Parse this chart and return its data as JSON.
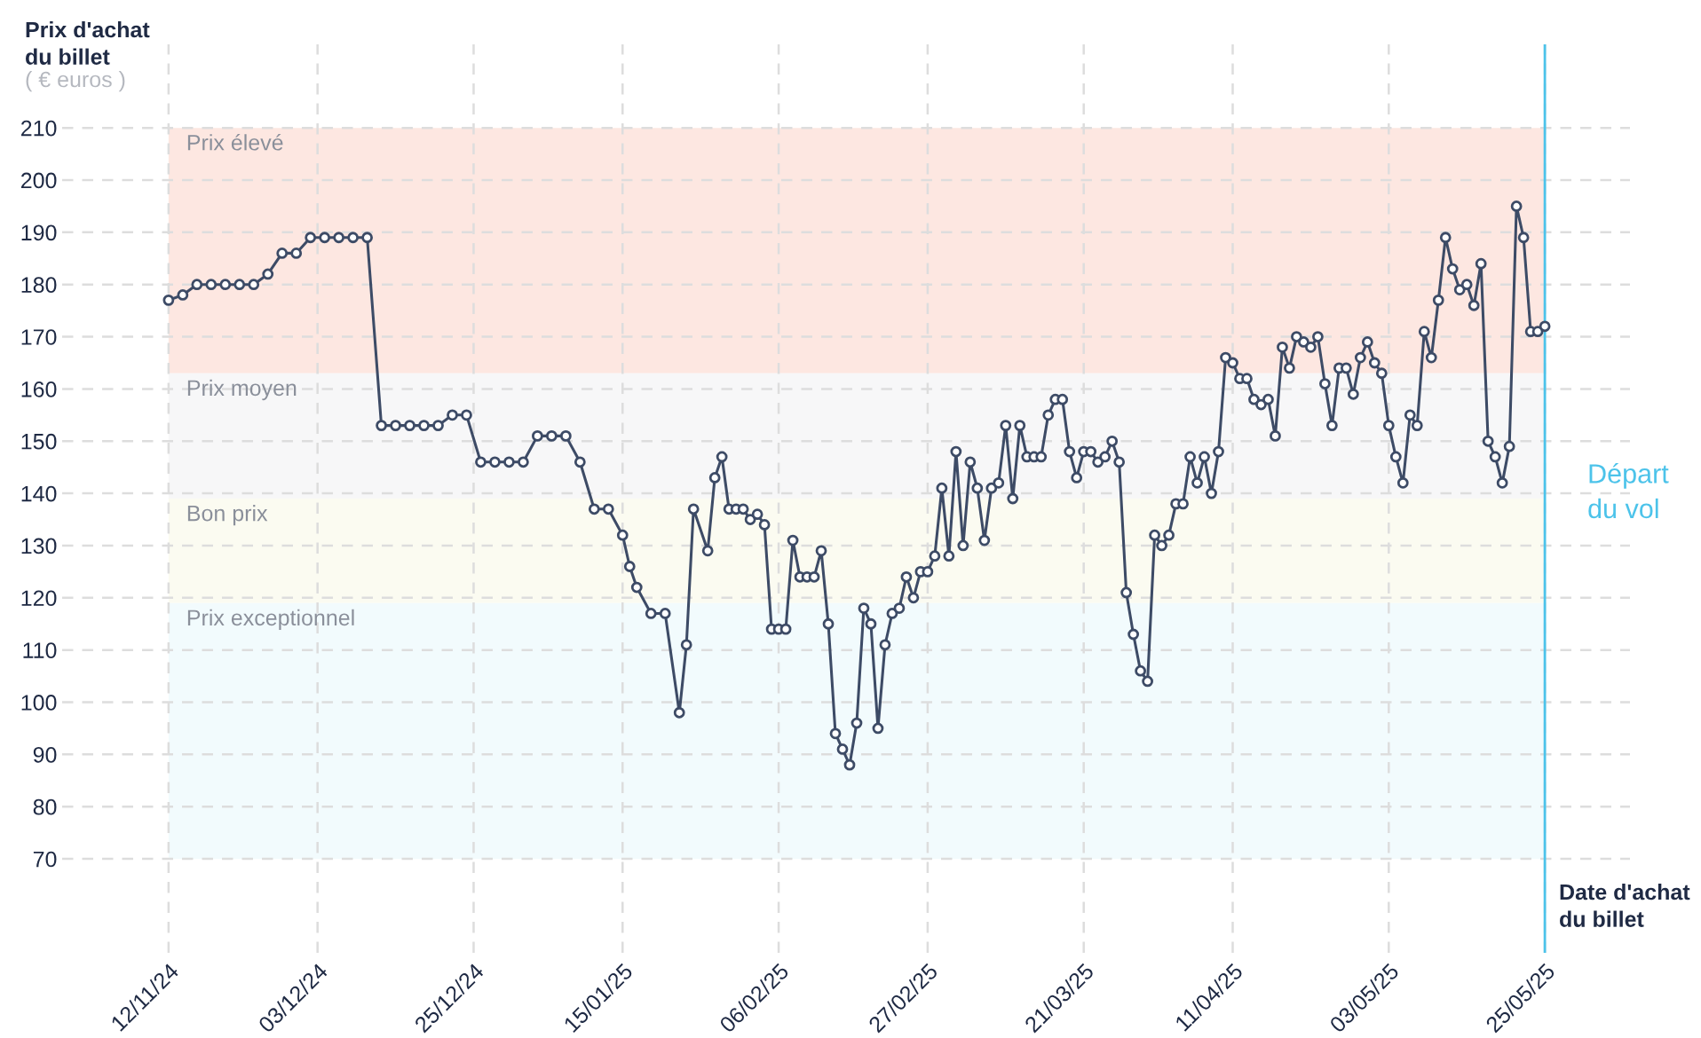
{
  "chart_data": {
    "type": "line",
    "ylabel": "Prix d'achat\ndu billet",
    "subtitle": "( € euros )",
    "xlabel": "Date d'achat\ndu billet",
    "series": [
      {
        "color": "#3d4b66",
        "marker": "circle",
        "line_style": "solid",
        "x": [
          "2024-11-12",
          "2024-11-14",
          "2024-11-16",
          "2024-11-18",
          "2024-11-20",
          "2024-11-22",
          "2024-11-24",
          "2024-11-26",
          "2024-11-28",
          "2024-11-30",
          "2024-12-02",
          "2024-12-04",
          "2024-12-06",
          "2024-12-08",
          "2024-12-10",
          "2024-12-12",
          "2024-12-14",
          "2024-12-16",
          "2024-12-18",
          "2024-12-20",
          "2024-12-22",
          "2024-12-24",
          "2024-12-26",
          "2024-12-28",
          "2024-12-30",
          "2025-01-01",
          "2025-01-03",
          "2025-01-05",
          "2025-01-07",
          "2025-01-09",
          "2025-01-11",
          "2025-01-13",
          "2025-01-15",
          "2025-01-16",
          "2025-01-17",
          "2025-01-19",
          "2025-01-21",
          "2025-01-23",
          "2025-01-24",
          "2025-01-25",
          "2025-01-27",
          "2025-01-28",
          "2025-01-29",
          "2025-01-30",
          "2025-01-31",
          "2025-02-01",
          "2025-02-02",
          "2025-02-03",
          "2025-02-04",
          "2025-02-05",
          "2025-02-06",
          "2025-02-07",
          "2025-02-08",
          "2025-02-09",
          "2025-02-10",
          "2025-02-11",
          "2025-02-12",
          "2025-02-13",
          "2025-02-14",
          "2025-02-15",
          "2025-02-16",
          "2025-02-17",
          "2025-02-18",
          "2025-02-19",
          "2025-02-20",
          "2025-02-21",
          "2025-02-22",
          "2025-02-23",
          "2025-02-24",
          "2025-02-25",
          "2025-02-26",
          "2025-02-27",
          "2025-02-28",
          "2025-03-01",
          "2025-03-02",
          "2025-03-03",
          "2025-03-04",
          "2025-03-05",
          "2025-03-06",
          "2025-03-07",
          "2025-03-08",
          "2025-03-09",
          "2025-03-10",
          "2025-03-11",
          "2025-03-12",
          "2025-03-13",
          "2025-03-14",
          "2025-03-15",
          "2025-03-16",
          "2025-03-17",
          "2025-03-18",
          "2025-03-19",
          "2025-03-20",
          "2025-03-21",
          "2025-03-22",
          "2025-03-23",
          "2025-03-24",
          "2025-03-25",
          "2025-03-26",
          "2025-03-27",
          "2025-03-28",
          "2025-03-29",
          "2025-03-30",
          "2025-03-31",
          "2025-04-01",
          "2025-04-02",
          "2025-04-03",
          "2025-04-04",
          "2025-04-05",
          "2025-04-06",
          "2025-04-07",
          "2025-04-08",
          "2025-04-09",
          "2025-04-10",
          "2025-04-11",
          "2025-04-12",
          "2025-04-13",
          "2025-04-14",
          "2025-04-15",
          "2025-04-16",
          "2025-04-17",
          "2025-04-18",
          "2025-04-19",
          "2025-04-20",
          "2025-04-21",
          "2025-04-22",
          "2025-04-23",
          "2025-04-24",
          "2025-04-25",
          "2025-04-26",
          "2025-04-27",
          "2025-04-28",
          "2025-04-29",
          "2025-04-30",
          "2025-05-01",
          "2025-05-02",
          "2025-05-03",
          "2025-05-04",
          "2025-05-05",
          "2025-05-06",
          "2025-05-07",
          "2025-05-08",
          "2025-05-09",
          "2025-05-10",
          "2025-05-11",
          "2025-05-12",
          "2025-05-13",
          "2025-05-14",
          "2025-05-15",
          "2025-05-16",
          "2025-05-17",
          "2025-05-18",
          "2025-05-19",
          "2025-05-20",
          "2025-05-21",
          "2025-05-22",
          "2025-05-23",
          "2025-05-24",
          "2025-05-25"
        ],
        "values": [
          177,
          178,
          180,
          180,
          180,
          180,
          180,
          182,
          186,
          186,
          189,
          189,
          189,
          189,
          189,
          153,
          153,
          153,
          153,
          153,
          155,
          155,
          146,
          146,
          146,
          146,
          151,
          151,
          151,
          146,
          137,
          137,
          132,
          126,
          122,
          117,
          117,
          98,
          111,
          137,
          129,
          143,
          147,
          137,
          137,
          137,
          135,
          136,
          134,
          114,
          114,
          114,
          131,
          124,
          124,
          124,
          129,
          115,
          94,
          91,
          88,
          96,
          118,
          115,
          95,
          111,
          117,
          118,
          124,
          120,
          125,
          125,
          128,
          141,
          128,
          148,
          130,
          146,
          141,
          131,
          141,
          142,
          153,
          139,
          153,
          147,
          147,
          147,
          155,
          158,
          158,
          148,
          143,
          148,
          148,
          146,
          147,
          150,
          146,
          121,
          113,
          106,
          104,
          132,
          130,
          132,
          138,
          138,
          147,
          142,
          147,
          140,
          148,
          166,
          165,
          162,
          162,
          158,
          157,
          158,
          151,
          168,
          164,
          170,
          169,
          168,
          170,
          161,
          153,
          164,
          164,
          159,
          166,
          169,
          165,
          163,
          153,
          147,
          142,
          155,
          153,
          171,
          166,
          177,
          189,
          183,
          179,
          180,
          176,
          184,
          150,
          147,
          142,
          149,
          195,
          189,
          171,
          171,
          172
        ]
      }
    ],
    "xlim": [
      "2024-10-28",
      "2025-06-06"
    ],
    "ylim": [
      52,
      226
    ],
    "xticks": [
      {
        "value": "2024-11-12",
        "label": "12/11/24"
      },
      {
        "value": "2024-12-03",
        "label": "03/12/24"
      },
      {
        "value": "2024-12-25",
        "label": "25/12/24"
      },
      {
        "value": "2025-01-15",
        "label": "15/01/25"
      },
      {
        "value": "2025-02-06",
        "label": "06/02/25"
      },
      {
        "value": "2025-02-27",
        "label": "27/02/25"
      },
      {
        "value": "2025-03-21",
        "label": "21/03/25"
      },
      {
        "value": "2025-04-11",
        "label": "11/04/25"
      },
      {
        "value": "2025-05-03",
        "label": "03/05/25"
      },
      {
        "value": "2025-05-25",
        "label": "25/05/25"
      }
    ],
    "yticks": [
      70,
      80,
      90,
      100,
      110,
      120,
      130,
      140,
      150,
      160,
      170,
      180,
      190,
      200,
      210
    ],
    "grid": true,
    "bands": [
      {
        "axis": "y",
        "from": 163,
        "to": 210,
        "label": "Prix élevé",
        "color": "#fde7e1"
      },
      {
        "axis": "y",
        "from": 139,
        "to": 163,
        "label": "Prix moyen",
        "color": "#f7f7f8"
      },
      {
        "axis": "y",
        "from": 119,
        "to": 139,
        "label": "Bon prix",
        "color": "#fbfbf1"
      },
      {
        "axis": "y",
        "from": 70,
        "to": 119,
        "label": "Prix exceptionnel",
        "color": "#f2fbfd"
      }
    ],
    "ref_lines": [
      {
        "axis": "x",
        "value": "2025-05-25",
        "label": "Départ\ndu vol",
        "color": "#4cc3ea",
        "line_style": "solid"
      }
    ]
  }
}
